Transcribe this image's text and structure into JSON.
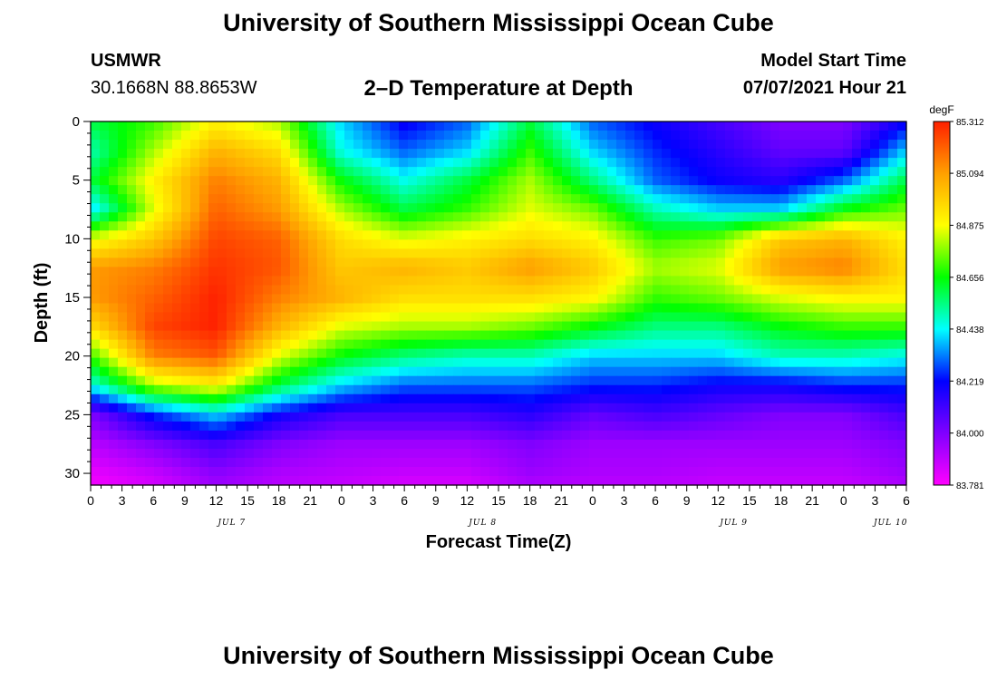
{
  "header": {
    "title": "University of Southern Mississippi Ocean Cube",
    "station_name": "USMWR",
    "coords": "30.1668N  88.8653W",
    "chart_title": "2–D Temperature at Depth",
    "model_start_label": "Model Start Time",
    "model_start_value": "07/07/2021 Hour 21"
  },
  "footer": {
    "title": "University of Southern Mississippi Ocean Cube"
  },
  "chart_data": {
    "type": "heatmap",
    "title": "2–D Temperature at Depth",
    "xlabel": "Forecast Time(Z)",
    "ylabel": "Depth (ft)",
    "x_tick_labels": [
      "0",
      "3",
      "6",
      "9",
      "12",
      "15",
      "18",
      "21",
      "0",
      "3",
      "6",
      "9",
      "12",
      "15",
      "18",
      "21",
      "0",
      "3",
      "6",
      "9",
      "12",
      "15",
      "18",
      "21",
      "0",
      "3",
      "6"
    ],
    "date_labels": [
      {
        "label": "JUL 7",
        "tick_index": 4.5
      },
      {
        "label": "JUL 8",
        "tick_index": 12.5
      },
      {
        "label": "JUL 9",
        "tick_index": 20.5
      },
      {
        "label": "JUL 10",
        "tick_index": 25.5
      }
    ],
    "y_ticks": [
      0,
      5,
      10,
      15,
      20,
      25,
      30
    ],
    "ylim": [
      0,
      31
    ],
    "y_inverted": true,
    "colorbar": {
      "unit": "degF",
      "min": 83.781,
      "max": 85.312,
      "tick_values": [
        85.312,
        85.094,
        84.875,
        84.656,
        84.438,
        84.219,
        84.0,
        83.781
      ],
      "tick_labels": [
        "85.312",
        "85.094",
        "84.875",
        "84.656",
        "84.438",
        "84.219",
        "84.000",
        "83.781"
      ],
      "colors": [
        "#ff00ff",
        "#8000ff",
        "#0000ff",
        "#00ffff",
        "#00ff00",
        "#ffff00",
        "#ffa000",
        "#ff2000"
      ]
    },
    "depths_ft": [
      0,
      2.5,
      5,
      7.5,
      10,
      12.5,
      15,
      17.5,
      20,
      22.5,
      25,
      27.5,
      30,
      31
    ],
    "hours": [
      0,
      6,
      12,
      18,
      24,
      30,
      36,
      42,
      48,
      54,
      60,
      66,
      72,
      78
    ],
    "values": [
      [
        84.6,
        84.7,
        84.9,
        84.8,
        84.4,
        84.2,
        84.3,
        84.6,
        84.3,
        84.2,
        84.1,
        84.0,
        84.0,
        84.2
      ],
      [
        84.5,
        84.8,
        85.05,
        84.95,
        84.45,
        84.3,
        84.4,
        84.7,
        84.4,
        84.25,
        84.15,
        84.05,
        84.05,
        84.4
      ],
      [
        84.6,
        84.9,
        85.15,
        85.05,
        84.65,
        84.45,
        84.6,
        84.8,
        84.55,
        84.3,
        84.2,
        84.15,
        84.3,
        84.6
      ],
      [
        84.4,
        84.85,
        85.2,
        85.1,
        84.8,
        84.6,
        84.7,
        84.85,
        84.75,
        84.5,
        84.4,
        84.4,
        84.65,
        84.75
      ],
      [
        84.85,
        85.0,
        85.25,
        85.2,
        84.95,
        84.85,
        84.9,
        84.95,
        84.9,
        84.7,
        84.75,
        85.0,
        85.05,
        84.9
      ],
      [
        85.1,
        85.15,
        85.28,
        85.22,
        85.0,
        85.05,
        85.0,
        85.1,
        85.0,
        84.8,
        84.85,
        85.1,
        85.15,
        84.95
      ],
      [
        85.1,
        85.2,
        85.31,
        85.15,
        85.05,
        84.95,
        84.95,
        84.95,
        84.9,
        84.7,
        84.75,
        84.85,
        84.9,
        84.9
      ],
      [
        84.95,
        85.25,
        85.31,
        85.05,
        84.85,
        84.8,
        84.8,
        84.75,
        84.65,
        84.55,
        84.55,
        84.65,
        84.7,
        84.7
      ],
      [
        84.7,
        85.15,
        85.22,
        84.85,
        84.65,
        84.55,
        84.5,
        84.5,
        84.4,
        84.4,
        84.4,
        84.5,
        84.5,
        84.45
      ],
      [
        84.45,
        84.8,
        84.9,
        84.6,
        84.4,
        84.3,
        84.3,
        84.3,
        84.25,
        84.25,
        84.2,
        84.2,
        84.25,
        84.25
      ],
      [
        84.0,
        84.25,
        84.4,
        84.2,
        84.1,
        84.1,
        84.1,
        84.15,
        84.05,
        84.1,
        84.05,
        84.0,
        84.0,
        84.1
      ],
      [
        83.9,
        84.0,
        84.1,
        84.0,
        83.95,
        83.95,
        83.95,
        84.0,
        83.95,
        83.95,
        83.95,
        83.95,
        83.95,
        84.0
      ],
      [
        83.82,
        83.88,
        83.98,
        83.92,
        83.9,
        83.88,
        83.88,
        83.95,
        83.92,
        83.92,
        83.9,
        83.9,
        83.9,
        83.95
      ],
      [
        83.8,
        83.85,
        83.95,
        83.9,
        83.88,
        83.85,
        83.85,
        83.92,
        83.9,
        83.9,
        83.88,
        83.88,
        83.88,
        83.92
      ]
    ]
  }
}
